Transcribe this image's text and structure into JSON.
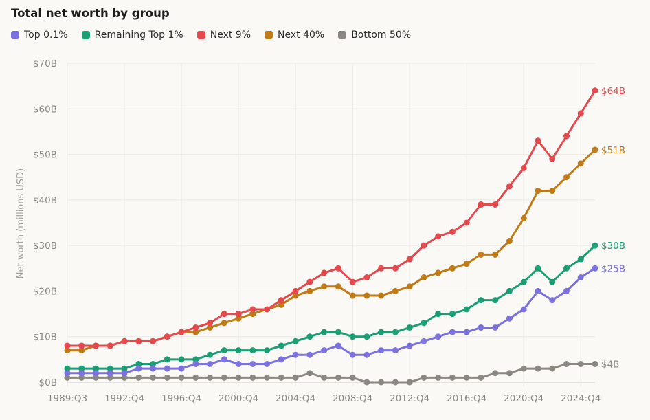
{
  "chart_data": {
    "type": "line",
    "title": "Total net worth by group",
    "ylabel": "Net worth (millions USD)",
    "xlabel": "",
    "ylim": [
      0,
      70
    ],
    "yticks": [
      0,
      10,
      20,
      30,
      40,
      50,
      60,
      70
    ],
    "ytick_labels": [
      "$0B",
      "$10B",
      "$20B",
      "$30B",
      "$40B",
      "$50B",
      "$60B",
      "$70B"
    ],
    "grid": true,
    "legend_position": "top-left",
    "x": [
      "1989:Q3",
      "1989:Q4",
      "1990:Q4",
      "1991:Q4",
      "1992:Q4",
      "1993:Q4",
      "1994:Q4",
      "1995:Q4",
      "1996:Q4",
      "1997:Q4",
      "1998:Q4",
      "1999:Q4",
      "2000:Q4",
      "2001:Q4",
      "2002:Q4",
      "2003:Q4",
      "2004:Q4",
      "2005:Q4",
      "2006:Q4",
      "2007:Q4",
      "2008:Q4",
      "2009:Q4",
      "2010:Q4",
      "2011:Q4",
      "2012:Q4",
      "2013:Q4",
      "2014:Q4",
      "2015:Q4",
      "2016:Q4",
      "2017:Q4",
      "2018:Q4",
      "2019:Q4",
      "2020:Q4",
      "2021:Q4",
      "2022:Q4",
      "2023:Q4",
      "2024:Q4",
      "2025:Q2"
    ],
    "xtick_labels": [
      "1989:Q3",
      "1992:Q4",
      "1996:Q4",
      "2000:Q4",
      "2004:Q4",
      "2008:Q4",
      "2012:Q4",
      "2016:Q4",
      "2020:Q4",
      "2024:Q4"
    ],
    "series": [
      {
        "name": "Top 0.1%",
        "color": "#7b72e0",
        "end_label": "$25B",
        "values": [
          2,
          2,
          2,
          2,
          2,
          3,
          3,
          3,
          3,
          4,
          4,
          5,
          4,
          4,
          4,
          5,
          6,
          6,
          7,
          8,
          6,
          6,
          7,
          7,
          8,
          9,
          10,
          11,
          11,
          12,
          12,
          14,
          16,
          20,
          18,
          20,
          23,
          25
        ]
      },
      {
        "name": "Remaining Top 1%",
        "color": "#1a9e74",
        "end_label": "$30B",
        "values": [
          3,
          3,
          3,
          3,
          3,
          4,
          4,
          5,
          5,
          5,
          6,
          7,
          7,
          7,
          7,
          8,
          9,
          10,
          11,
          11,
          10,
          10,
          11,
          11,
          12,
          13,
          15,
          15,
          16,
          18,
          18,
          20,
          22,
          25,
          22,
          25,
          27,
          30
        ]
      },
      {
        "name": "Next 9%",
        "color": "#e5484d",
        "end_label": "$64B",
        "values": [
          8,
          8,
          8,
          8,
          9,
          9,
          9,
          10,
          11,
          12,
          13,
          15,
          15,
          16,
          16,
          18,
          20,
          22,
          24,
          25,
          22,
          23,
          25,
          25,
          27,
          30,
          32,
          33,
          35,
          39,
          39,
          43,
          47,
          53,
          49,
          54,
          59,
          64
        ]
      },
      {
        "name": "Next 40%",
        "color": "#c07a16",
        "end_label": "$51B",
        "values": [
          7,
          7,
          8,
          8,
          9,
          9,
          9,
          10,
          11,
          11,
          12,
          13,
          14,
          15,
          16,
          17,
          19,
          20,
          21,
          21,
          19,
          19,
          19,
          20,
          21,
          23,
          24,
          25,
          26,
          28,
          28,
          31,
          36,
          42,
          42,
          45,
          48,
          51
        ]
      },
      {
        "name": "Bottom 50%",
        "color": "#8a8880",
        "end_label": "$4B",
        "values": [
          1,
          1,
          1,
          1,
          1,
          1,
          1,
          1,
          1,
          1,
          1,
          1,
          1,
          1,
          1,
          1,
          1,
          2,
          1,
          1,
          1,
          0,
          0,
          0,
          0,
          1,
          1,
          1,
          1,
          1,
          2,
          2,
          3,
          3,
          3,
          4,
          4,
          4
        ]
      }
    ]
  }
}
